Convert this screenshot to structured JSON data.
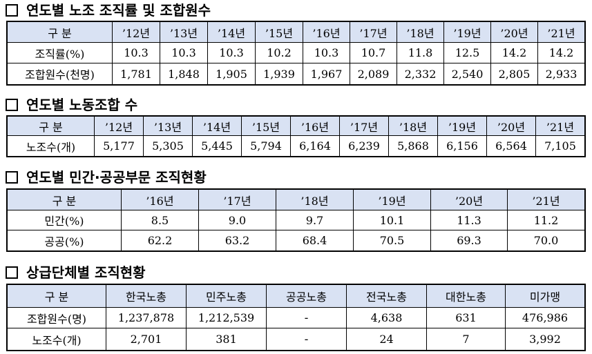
{
  "sections": [
    {
      "title": "연도별 노조 조직률 및 조합원수",
      "header": [
        "구 분",
        "’12년",
        "’13년",
        "’14년",
        "’15년",
        "’16년",
        "’17년",
        "’18년",
        "’19년",
        "’20년",
        "’21년"
      ],
      "rows": [
        [
          "조직률(%)",
          "10.3",
          "10.3",
          "10.3",
          "10.2",
          "10.3",
          "10.7",
          "11.8",
          "12.5",
          "14.2",
          "14.2"
        ],
        [
          "조합원수(천명)",
          "1,781",
          "1,848",
          "1,905",
          "1,939",
          "1,967",
          "2,089",
          "2,332",
          "2,540",
          "2,805",
          "2,933"
        ]
      ]
    },
    {
      "title": "연도별 노동조합 수",
      "header": [
        "구 분",
        "’12년",
        "’13년",
        "’14년",
        "’15년",
        "’16년",
        "’17년",
        "’18년",
        "’19년",
        "’20년",
        "’21년"
      ],
      "rows": [
        [
          "노조수(개)",
          "5,177",
          "5,305",
          "5,445",
          "5,794",
          "6,164",
          "6,239",
          "5,868",
          "6,156",
          "6,564",
          "7,105"
        ]
      ]
    },
    {
      "title": "연도별 민간·공공부문 조직현황",
      "header": [
        "구 분",
        "’16년",
        "’17년",
        "’18년",
        "’19년",
        "’20년",
        "’21년"
      ],
      "rows": [
        [
          "민간(%)",
          "8.5",
          "9.0",
          "9.7",
          "10.1",
          "11.3",
          "11.2"
        ],
        [
          "공공(%)",
          "62.2",
          "63.2",
          "68.4",
          "70.5",
          "69.3",
          "70.0"
        ]
      ]
    },
    {
      "title": "상급단체별 조직현황",
      "header": [
        "구 분",
        "한국노총",
        "민주노총",
        "공공노총",
        "전국노총",
        "대한노총",
        "미가맹"
      ],
      "rows": [
        [
          "조합원수(명)",
          "1,237,878",
          "1,212,539",
          "-",
          "4,638",
          "631",
          "476,986"
        ],
        [
          "노조수(개)",
          "2,701",
          "381",
          "-",
          "24",
          "7",
          "3,992"
        ]
      ]
    }
  ]
}
